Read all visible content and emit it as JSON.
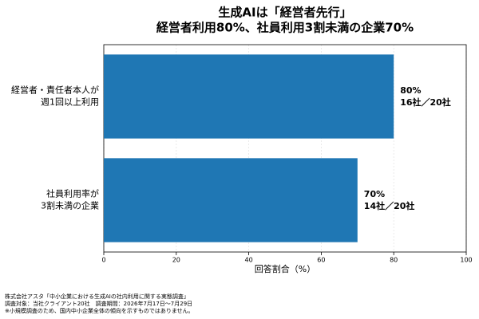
{
  "chart_data": {
    "type": "barh",
    "title": "生成AIは「経営者先行」",
    "subtitle": "経営者利用80%、社員利用3割未満の企業70%",
    "categories": [
      "経営者・責任者本人が\n週1回以上利用",
      "社員利用率が\n3割未満の企業"
    ],
    "values": [
      80,
      70
    ],
    "value_labels": [
      "80%",
      "70%"
    ],
    "value_sublabels": [
      "16社／20社",
      "14社／20社"
    ],
    "color": "#1f77b4",
    "xlabel": "回答割合（%）",
    "xlim": [
      0,
      100
    ],
    "xticks": [
      0,
      20,
      40,
      60,
      80,
      100
    ],
    "grid": true
  },
  "notes": [
    "株式会社アスタ「中小企業における生成AIの社内利用に関する実態調査」",
    "調査対象：当社クライアント20社　調査期間：2026年7月17日〜7月29日",
    "※小規模調査のため、国内中小企業全体の傾向を示すものではありません。"
  ]
}
